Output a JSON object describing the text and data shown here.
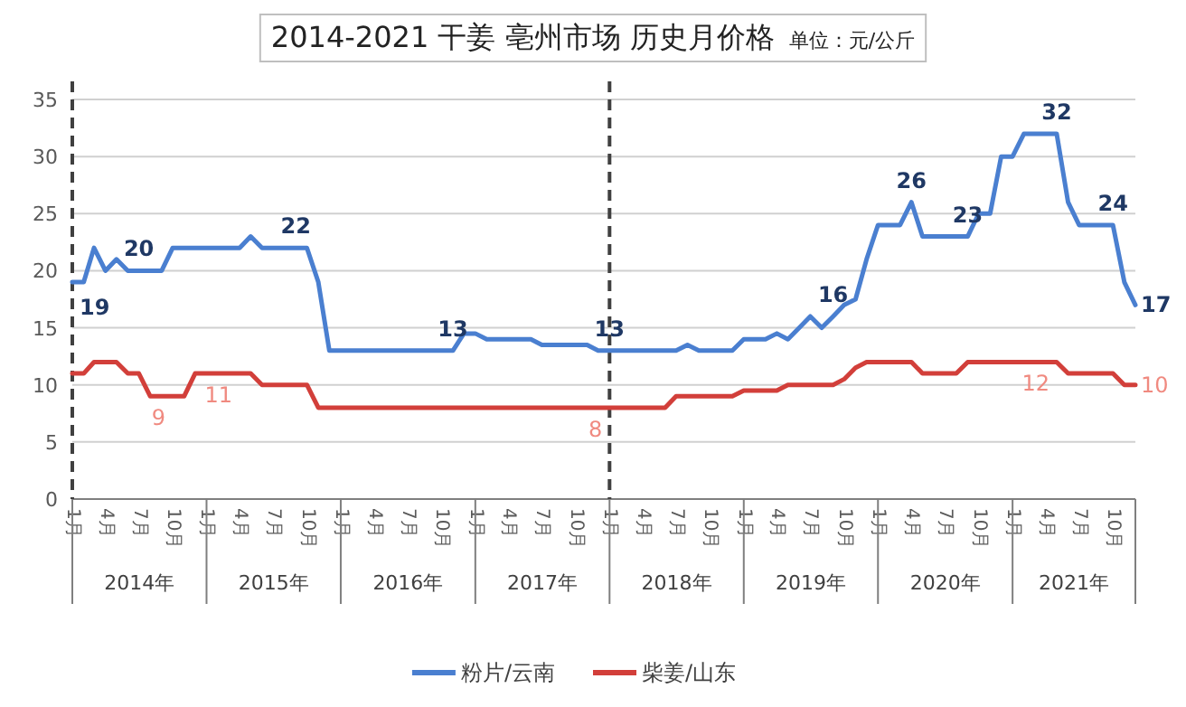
{
  "chart_data": {
    "type": "line",
    "title": "2014-2021 干姜 亳州市场 历史月价格",
    "subtitle": "单位：元/公斤",
    "x": [
      "2014-01",
      "2014-02",
      "2014-03",
      "2014-04",
      "2014-05",
      "2014-06",
      "2014-07",
      "2014-08",
      "2014-09",
      "2014-10",
      "2014-11",
      "2014-12",
      "2015-01",
      "2015-02",
      "2015-03",
      "2015-04",
      "2015-05",
      "2015-06",
      "2015-07",
      "2015-08",
      "2015-09",
      "2015-10",
      "2015-11",
      "2015-12",
      "2016-01",
      "2016-02",
      "2016-03",
      "2016-04",
      "2016-05",
      "2016-06",
      "2016-07",
      "2016-08",
      "2016-09",
      "2016-10",
      "2016-11",
      "2016-12",
      "2017-01",
      "2017-02",
      "2017-03",
      "2017-04",
      "2017-05",
      "2017-06",
      "2017-07",
      "2017-08",
      "2017-09",
      "2017-10",
      "2017-11",
      "2017-12",
      "2018-01",
      "2018-02",
      "2018-03",
      "2018-04",
      "2018-05",
      "2018-06",
      "2018-07",
      "2018-08",
      "2018-09",
      "2018-10",
      "2018-11",
      "2018-12",
      "2019-01",
      "2019-02",
      "2019-03",
      "2019-04",
      "2019-05",
      "2019-06",
      "2019-07",
      "2019-08",
      "2019-09",
      "2019-10",
      "2019-11",
      "2019-12",
      "2020-01",
      "2020-02",
      "2020-03",
      "2020-04",
      "2020-05",
      "2020-06",
      "2020-07",
      "2020-08",
      "2020-09",
      "2020-10",
      "2020-11",
      "2020-12",
      "2021-01",
      "2021-02",
      "2021-03",
      "2021-04",
      "2021-05",
      "2021-06",
      "2021-07",
      "2021-08",
      "2021-09",
      "2021-10",
      "2021-11",
      "2021-12"
    ],
    "xlim": [
      "2014-01",
      "2021-12"
    ],
    "xticks": [
      {
        "value": "2014-01",
        "label": "1月"
      },
      {
        "value": "2014-04",
        "label": "4月"
      },
      {
        "value": "2014-07",
        "label": "7月"
      },
      {
        "value": "2014-10",
        "label": "10月"
      },
      {
        "value": "2015-01",
        "label": "1月"
      },
      {
        "value": "2015-04",
        "label": "4月"
      },
      {
        "value": "2015-07",
        "label": "7月"
      },
      {
        "value": "2015-10",
        "label": "10月"
      },
      {
        "value": "2016-01",
        "label": "1月"
      },
      {
        "value": "2016-04",
        "label": "4月"
      },
      {
        "value": "2016-07",
        "label": "7月"
      },
      {
        "value": "2016-10",
        "label": "10月"
      },
      {
        "value": "2017-01",
        "label": "1月"
      },
      {
        "value": "2017-04",
        "label": "4月"
      },
      {
        "value": "2017-07",
        "label": "7月"
      },
      {
        "value": "2017-10",
        "label": "10月"
      },
      {
        "value": "2018-01",
        "label": "1月"
      },
      {
        "value": "2018-04",
        "label": "4月"
      },
      {
        "value": "2018-07",
        "label": "7月"
      },
      {
        "value": "2018-10",
        "label": "10月"
      },
      {
        "value": "2019-01",
        "label": "1月"
      },
      {
        "value": "2019-04",
        "label": "4月"
      },
      {
        "value": "2019-07",
        "label": "7月"
      },
      {
        "value": "2019-10",
        "label": "10月"
      },
      {
        "value": "2020-01",
        "label": "1月"
      },
      {
        "value": "2020-04",
        "label": "4月"
      },
      {
        "value": "2020-07",
        "label": "7月"
      },
      {
        "value": "2020-10",
        "label": "10月"
      },
      {
        "value": "2021-01",
        "label": "1月"
      },
      {
        "value": "2021-04",
        "label": "4月"
      },
      {
        "value": "2021-07",
        "label": "7月"
      },
      {
        "value": "2021-10",
        "label": "10月"
      }
    ],
    "ylim": [
      0,
      35
    ],
    "yticks": [
      0,
      5,
      10,
      15,
      20,
      25,
      30,
      35
    ],
    "grid": "y",
    "legend": "bottom",
    "marker": "none",
    "line_style": "solid",
    "ref_lines": [
      {
        "axis": "x",
        "value": "2014-01",
        "line_style": "dashed",
        "color": "#404040"
      },
      {
        "axis": "x",
        "value": "2018-01",
        "line_style": "dashed",
        "color": "#404040"
      }
    ],
    "annotations": [
      "2014年",
      "2015年",
      "2016年",
      "2017年",
      "2018年",
      "2019年",
      "2020年",
      "2021年"
    ],
    "series": [
      {
        "name": "粉片/云南",
        "color": "#4a7fd0",
        "values": [
          19,
          19,
          22,
          20,
          21,
          20,
          20,
          20,
          20,
          22,
          22,
          22,
          22,
          22,
          22,
          22,
          23,
          22,
          22,
          22,
          22,
          22,
          19,
          13,
          13,
          13,
          13,
          13,
          13,
          13,
          13,
          13,
          13,
          13,
          13,
          14.5,
          14.5,
          14,
          14,
          14,
          14,
          14,
          13.5,
          13.5,
          13.5,
          13.5,
          13.5,
          13,
          13,
          13,
          13,
          13,
          13,
          13,
          13,
          13.5,
          13,
          13,
          13,
          13,
          14,
          14,
          14,
          14.5,
          14,
          15,
          16,
          15,
          16,
          17,
          17.5,
          21,
          24,
          24,
          24,
          26,
          23,
          23,
          23,
          23,
          23,
          25,
          25,
          30,
          30,
          32,
          32,
          32,
          32,
          26,
          24,
          24,
          24,
          24,
          19,
          17
        ],
        "value_labels": [
          "19",
          null,
          null,
          null,
          null,
          null,
          "20",
          null,
          null,
          null,
          null,
          null,
          null,
          null,
          null,
          null,
          null,
          null,
          null,
          null,
          "22",
          null,
          null,
          null,
          null,
          null,
          null,
          null,
          null,
          null,
          null,
          null,
          null,
          null,
          "13",
          null,
          null,
          null,
          null,
          null,
          null,
          null,
          null,
          null,
          null,
          null,
          null,
          null,
          "13",
          null,
          null,
          null,
          null,
          null,
          null,
          null,
          null,
          null,
          null,
          null,
          null,
          null,
          null,
          null,
          null,
          null,
          null,
          null,
          "16",
          null,
          null,
          null,
          null,
          null,
          null,
          "26",
          null,
          null,
          null,
          null,
          "23",
          null,
          null,
          null,
          null,
          null,
          null,
          null,
          "32",
          null,
          null,
          null,
          null,
          "24",
          null,
          "17"
        ]
      },
      {
        "name": "柴姜/山东",
        "color": "#d23f3a",
        "values": [
          11,
          11,
          12,
          12,
          12,
          11,
          11,
          9,
          9,
          9,
          9,
          11,
          11,
          11,
          11,
          11,
          11,
          10,
          10,
          10,
          10,
          10,
          8,
          8,
          8,
          8,
          8,
          8,
          8,
          8,
          8,
          8,
          8,
          8,
          8,
          8,
          8,
          8,
          8,
          8,
          8,
          8,
          8,
          8,
          8,
          8,
          8,
          8,
          8,
          8,
          8,
          8,
          8,
          8,
          9,
          9,
          9,
          9,
          9,
          9,
          9.5,
          9.5,
          9.5,
          9.5,
          10,
          10,
          10,
          10,
          10,
          10.5,
          11.5,
          12,
          12,
          12,
          12,
          12,
          11,
          11,
          11,
          11,
          12,
          12,
          12,
          12,
          12,
          12,
          12,
          12,
          12,
          11,
          11,
          11,
          11,
          11,
          10,
          10
        ],
        "value_labels": [
          null,
          null,
          null,
          null,
          null,
          null,
          null,
          null,
          null,
          "9",
          null,
          null,
          null,
          null,
          null,
          "11",
          null,
          null,
          null,
          null,
          null,
          null,
          null,
          null,
          null,
          null,
          null,
          null,
          null,
          null,
          null,
          null,
          null,
          null,
          null,
          null,
          null,
          null,
          null,
          null,
          null,
          null,
          null,
          null,
          null,
          null,
          null,
          null,
          "8",
          null,
          null,
          null,
          null,
          null,
          null,
          null,
          null,
          null,
          null,
          null,
          null,
          null,
          null,
          null,
          null,
          null,
          null,
          null,
          null,
          null,
          null,
          null,
          null,
          null,
          null,
          null,
          null,
          null,
          null,
          null,
          null,
          null,
          null,
          null,
          null,
          null,
          null,
          null,
          "12",
          null,
          null,
          null,
          null,
          null,
          null,
          "10"
        ]
      }
    ]
  }
}
